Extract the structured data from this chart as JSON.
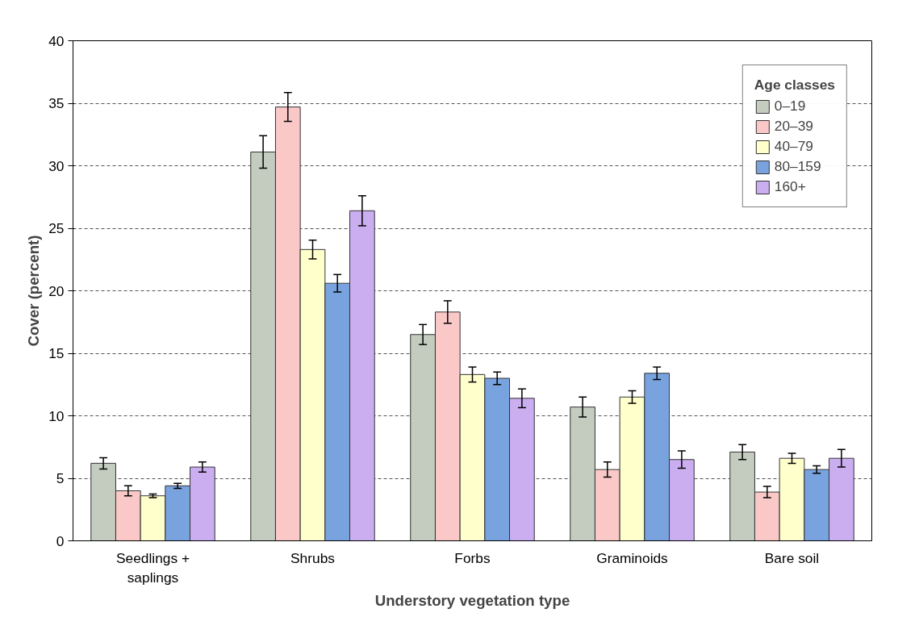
{
  "chart_data": {
    "type": "bar",
    "xlabel": "Understory vegetation type",
    "ylabel": "Cover (percent)",
    "legend_title": "Age classes",
    "categories": [
      "Seedlings + saplings",
      "Shrubs",
      "Forbs",
      "Graminoids",
      "Bare soil"
    ],
    "series": [
      {
        "name": "0–19",
        "color": "#c4ccc0",
        "values": [
          6.2,
          31.1,
          16.5,
          10.7,
          7.1
        ],
        "errors": [
          0.45,
          1.3,
          0.8,
          0.8,
          0.6
        ]
      },
      {
        "name": "20–39",
        "color": "#fbc8c8",
        "values": [
          4.0,
          34.7,
          18.3,
          5.7,
          3.9
        ],
        "errors": [
          0.4,
          1.15,
          0.9,
          0.6,
          0.45
        ]
      },
      {
        "name": "40–79",
        "color": "#ffffcc",
        "values": [
          3.6,
          23.3,
          13.3,
          11.5,
          6.6
        ],
        "errors": [
          0.15,
          0.75,
          0.6,
          0.5,
          0.4
        ]
      },
      {
        "name": "80–159",
        "color": "#79a3df",
        "values": [
          4.4,
          20.6,
          13.0,
          13.4,
          5.7
        ],
        "errors": [
          0.2,
          0.7,
          0.5,
          0.5,
          0.3
        ]
      },
      {
        "name": "160+",
        "color": "#cbaef0",
        "values": [
          5.9,
          26.4,
          11.4,
          6.5,
          6.6
        ],
        "errors": [
          0.4,
          1.2,
          0.75,
          0.7,
          0.7
        ]
      }
    ],
    "ylim": [
      0,
      40
    ],
    "yticks": [
      0,
      5,
      10,
      15,
      20,
      25,
      30,
      35,
      40
    ],
    "grid": "y",
    "legend": "top right"
  }
}
